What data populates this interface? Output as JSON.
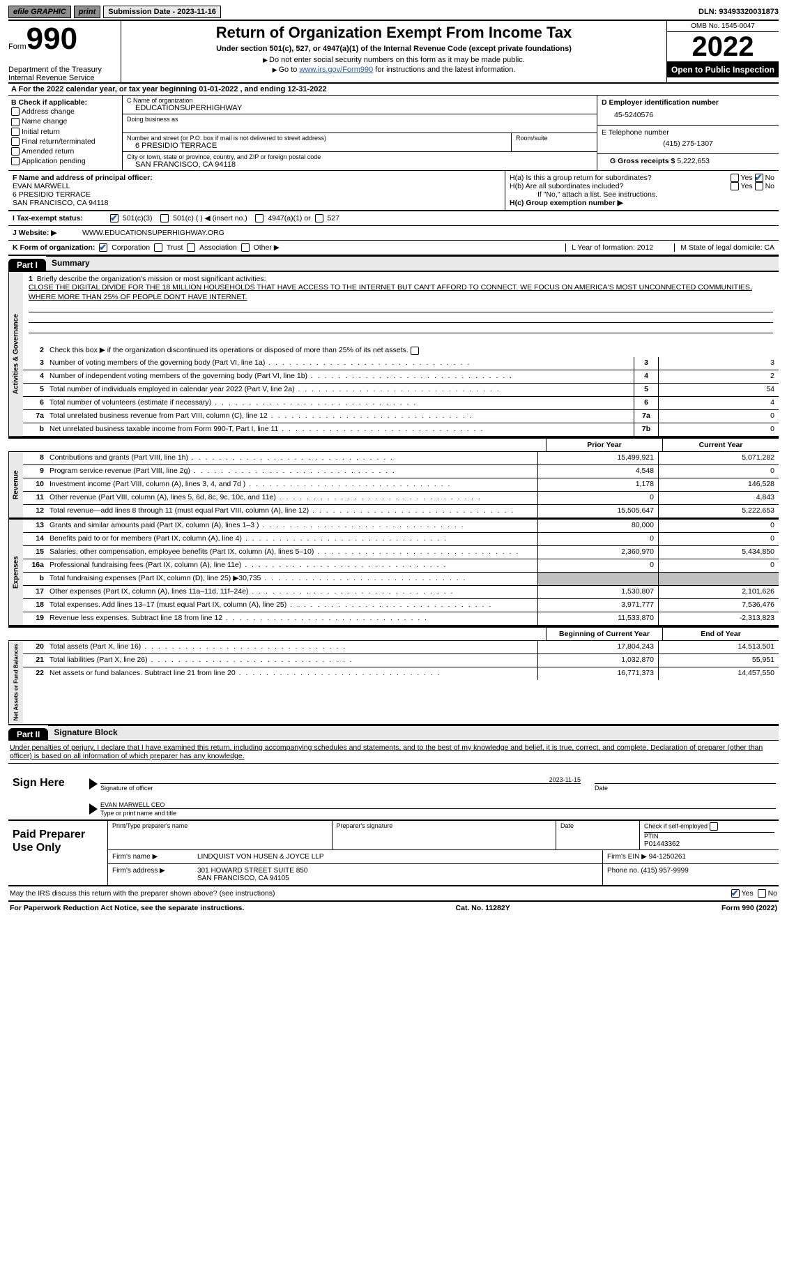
{
  "topbar": {
    "efile": "efile GRAPHIC",
    "print": "print",
    "submission_label": "Submission Date - 2023-11-16",
    "dln": "DLN: 93493320031873"
  },
  "header": {
    "form_word": "Form",
    "form_no": "990",
    "title": "Return of Organization Exempt From Income Tax",
    "sub1": "Under section 501(c), 527, or 4947(a)(1) of the Internal Revenue Code (except private foundations)",
    "sub2": "Do not enter social security numbers on this form as it may be made public.",
    "sub3_a": "Go to ",
    "sub3_link": "www.irs.gov/Form990",
    "sub3_b": " for instructions and the latest information.",
    "dept": "Department of the Treasury\nInternal Revenue Service",
    "omb": "OMB No. 1545-0047",
    "year": "2022",
    "open": "Open to Public Inspection"
  },
  "row_a": "A For the 2022 calendar year, or tax year beginning 01-01-2022    , and ending 12-31-2022",
  "col_b": {
    "header": "B Check if applicable:",
    "opts": [
      "Address change",
      "Name change",
      "Initial return",
      "Final return/terminated",
      "Amended return",
      "Application pending"
    ]
  },
  "col_c": {
    "name_label": "C Name of organization",
    "name": "EDUCATIONSUPERHIGHWAY",
    "dba_label": "Doing business as",
    "dba": "",
    "street_label": "Number and street (or P.O. box if mail is not delivered to street address)",
    "room_label": "Room/suite",
    "street": "6 PRESIDIO TERRACE",
    "city_label": "City or town, state or province, country, and ZIP or foreign postal code",
    "city": "SAN FRANCISCO, CA  94118"
  },
  "col_de": {
    "ein_label": "D Employer identification number",
    "ein": "45-5240576",
    "phone_label": "E Telephone number",
    "phone": "(415) 275-1307",
    "gross_label": "G Gross receipts $",
    "gross": "5,222,653"
  },
  "row_f": {
    "label": "F Name and address of principal officer:",
    "name": "EVAN MARWELL",
    "addr1": "6 PRESIDIO TERRACE",
    "addr2": "SAN FRANCISCO, CA  94118"
  },
  "row_h": {
    "ha": "H(a)  Is this a group return for subordinates?",
    "hb": "H(b)  Are all subordinates included?",
    "hb_note": "If \"No,\" attach a list. See instructions.",
    "hc": "H(c)  Group exemption number ▶"
  },
  "row_i": {
    "label": "I   Tax-exempt status:",
    "o1": "501(c)(3)",
    "o2": "501(c) (   ) ◀ (insert no.)",
    "o3": "4947(a)(1) or",
    "o4": "527"
  },
  "row_j": {
    "label": "J   Website: ▶",
    "val": "WWW.EDUCATIONSUPERHIGHWAY.ORG"
  },
  "row_k": {
    "label": "K Form of organization:",
    "opts": [
      "Corporation",
      "Trust",
      "Association",
      "Other ▶"
    ],
    "l": "L Year of formation: 2012",
    "m": "M State of legal domicile: CA"
  },
  "part1": {
    "hdr": "Part I",
    "title": "Summary",
    "q1": "Briefly describe the organization's mission or most significant activities:",
    "mission": "CLOSE THE DIGITAL DIVIDE FOR THE 18 MILLION HOUSEHOLDS THAT HAVE ACCESS TO THE INTERNET BUT CAN'T AFFORD TO CONNECT. WE FOCUS ON AMERICA'S MOST UNCONNECTED COMMUNITIES, WHERE MORE THAN 25% OF PEOPLE DON'T HAVE INTERNET.",
    "q2": "Check this box ▶           if the organization discontinued its operations or disposed of more than 25% of its net assets.",
    "lines_gov": [
      {
        "n": "3",
        "d": "Number of voting members of the governing body (Part VI, line 1a)",
        "box": "3",
        "v": "3"
      },
      {
        "n": "4",
        "d": "Number of independent voting members of the governing body (Part VI, line 1b)",
        "box": "4",
        "v": "2"
      },
      {
        "n": "5",
        "d": "Total number of individuals employed in calendar year 2022 (Part V, line 2a)",
        "box": "5",
        "v": "54"
      },
      {
        "n": "6",
        "d": "Total number of volunteers (estimate if necessary)",
        "box": "6",
        "v": "4"
      },
      {
        "n": "7a",
        "d": "Total unrelated business revenue from Part VIII, column (C), line 12",
        "box": "7a",
        "v": "0"
      },
      {
        "n": "b",
        "d": "Net unrelated business taxable income from Form 990-T, Part I, line 11",
        "box": "7b",
        "v": "0"
      }
    ],
    "prior_hdr": "Prior Year",
    "current_hdr": "Current Year",
    "revenue": [
      {
        "n": "8",
        "d": "Contributions and grants (Part VIII, line 1h)",
        "p": "15,499,921",
        "c": "5,071,282"
      },
      {
        "n": "9",
        "d": "Program service revenue (Part VIII, line 2g)",
        "p": "4,548",
        "c": "0"
      },
      {
        "n": "10",
        "d": "Investment income (Part VIII, column (A), lines 3, 4, and 7d )",
        "p": "1,178",
        "c": "146,528"
      },
      {
        "n": "11",
        "d": "Other revenue (Part VIII, column (A), lines 5, 6d, 8c, 9c, 10c, and 11e)",
        "p": "0",
        "c": "4,843"
      },
      {
        "n": "12",
        "d": "Total revenue—add lines 8 through 11 (must equal Part VIII, column (A), line 12)",
        "p": "15,505,647",
        "c": "5,222,653"
      }
    ],
    "expenses": [
      {
        "n": "13",
        "d": "Grants and similar amounts paid (Part IX, column (A), lines 1–3 )",
        "p": "80,000",
        "c": "0"
      },
      {
        "n": "14",
        "d": "Benefits paid to or for members (Part IX, column (A), line 4)",
        "p": "0",
        "c": "0"
      },
      {
        "n": "15",
        "d": "Salaries, other compensation, employee benefits (Part IX, column (A), lines 5–10)",
        "p": "2,360,970",
        "c": "5,434,850"
      },
      {
        "n": "16a",
        "d": "Professional fundraising fees (Part IX, column (A), line 11e)",
        "p": "0",
        "c": "0"
      },
      {
        "n": "b",
        "d": "Total fundraising expenses (Part IX, column (D), line 25) ▶30,735",
        "p": "",
        "c": "",
        "gray": true
      },
      {
        "n": "17",
        "d": "Other expenses (Part IX, column (A), lines 11a–11d, 11f–24e)",
        "p": "1,530,807",
        "c": "2,101,626"
      },
      {
        "n": "18",
        "d": "Total expenses. Add lines 13–17 (must equal Part IX, column (A), line 25)",
        "p": "3,971,777",
        "c": "7,536,476"
      },
      {
        "n": "19",
        "d": "Revenue less expenses. Subtract line 18 from line 12",
        "p": "11,533,870",
        "c": "-2,313,823"
      }
    ],
    "net_hdr_p": "Beginning of Current Year",
    "net_hdr_c": "End of Year",
    "net": [
      {
        "n": "20",
        "d": "Total assets (Part X, line 16)",
        "p": "17,804,243",
        "c": "14,513,501"
      },
      {
        "n": "21",
        "d": "Total liabilities (Part X, line 26)",
        "p": "1,032,870",
        "c": "55,951"
      },
      {
        "n": "22",
        "d": "Net assets or fund balances. Subtract line 21 from line 20",
        "p": "16,771,373",
        "c": "14,457,550"
      }
    ]
  },
  "part2": {
    "hdr": "Part II",
    "title": "Signature Block",
    "intro": "Under penalties of perjury, I declare that I have examined this return, including accompanying schedules and statements, and to the best of my knowledge and belief, it is true, correct, and complete. Declaration of preparer (other than officer) is based on all information of which preparer has any knowledge.",
    "sign_here": "Sign Here",
    "sig_officer_label": "Signature of officer",
    "date_label": "Date",
    "sig_date": "2023-11-15",
    "name_title": "EVAN MARWELL CEO",
    "name_title_label": "Type or print name and title",
    "paid": "Paid Preparer Use Only",
    "p_name_label": "Print/Type preparer's name",
    "p_sig_label": "Preparer's signature",
    "p_date_label": "Date",
    "p_check": "Check           if self-employed",
    "ptin_label": "PTIN",
    "ptin": "P01443362",
    "firm_name_label": "Firm's name      ▶",
    "firm_name": "LINDQUIST VON HUSEN & JOYCE LLP",
    "firm_ein_label": "Firm's EIN ▶",
    "firm_ein": "94-1250261",
    "firm_addr_label": "Firm's address ▶",
    "firm_addr1": "301 HOWARD STREET SUITE 850",
    "firm_addr2": "SAN FRANCISCO, CA  94105",
    "firm_phone_label": "Phone no.",
    "firm_phone": "(415) 957-9999",
    "discuss": "May the IRS discuss this return with the preparer shown above? (see instructions)"
  },
  "footer": {
    "left": "For Paperwork Reduction Act Notice, see the separate instructions.",
    "center": "Cat. No. 11282Y",
    "right": "Form 990 (2022)"
  },
  "yesno": {
    "yes": "Yes",
    "no": "No"
  }
}
